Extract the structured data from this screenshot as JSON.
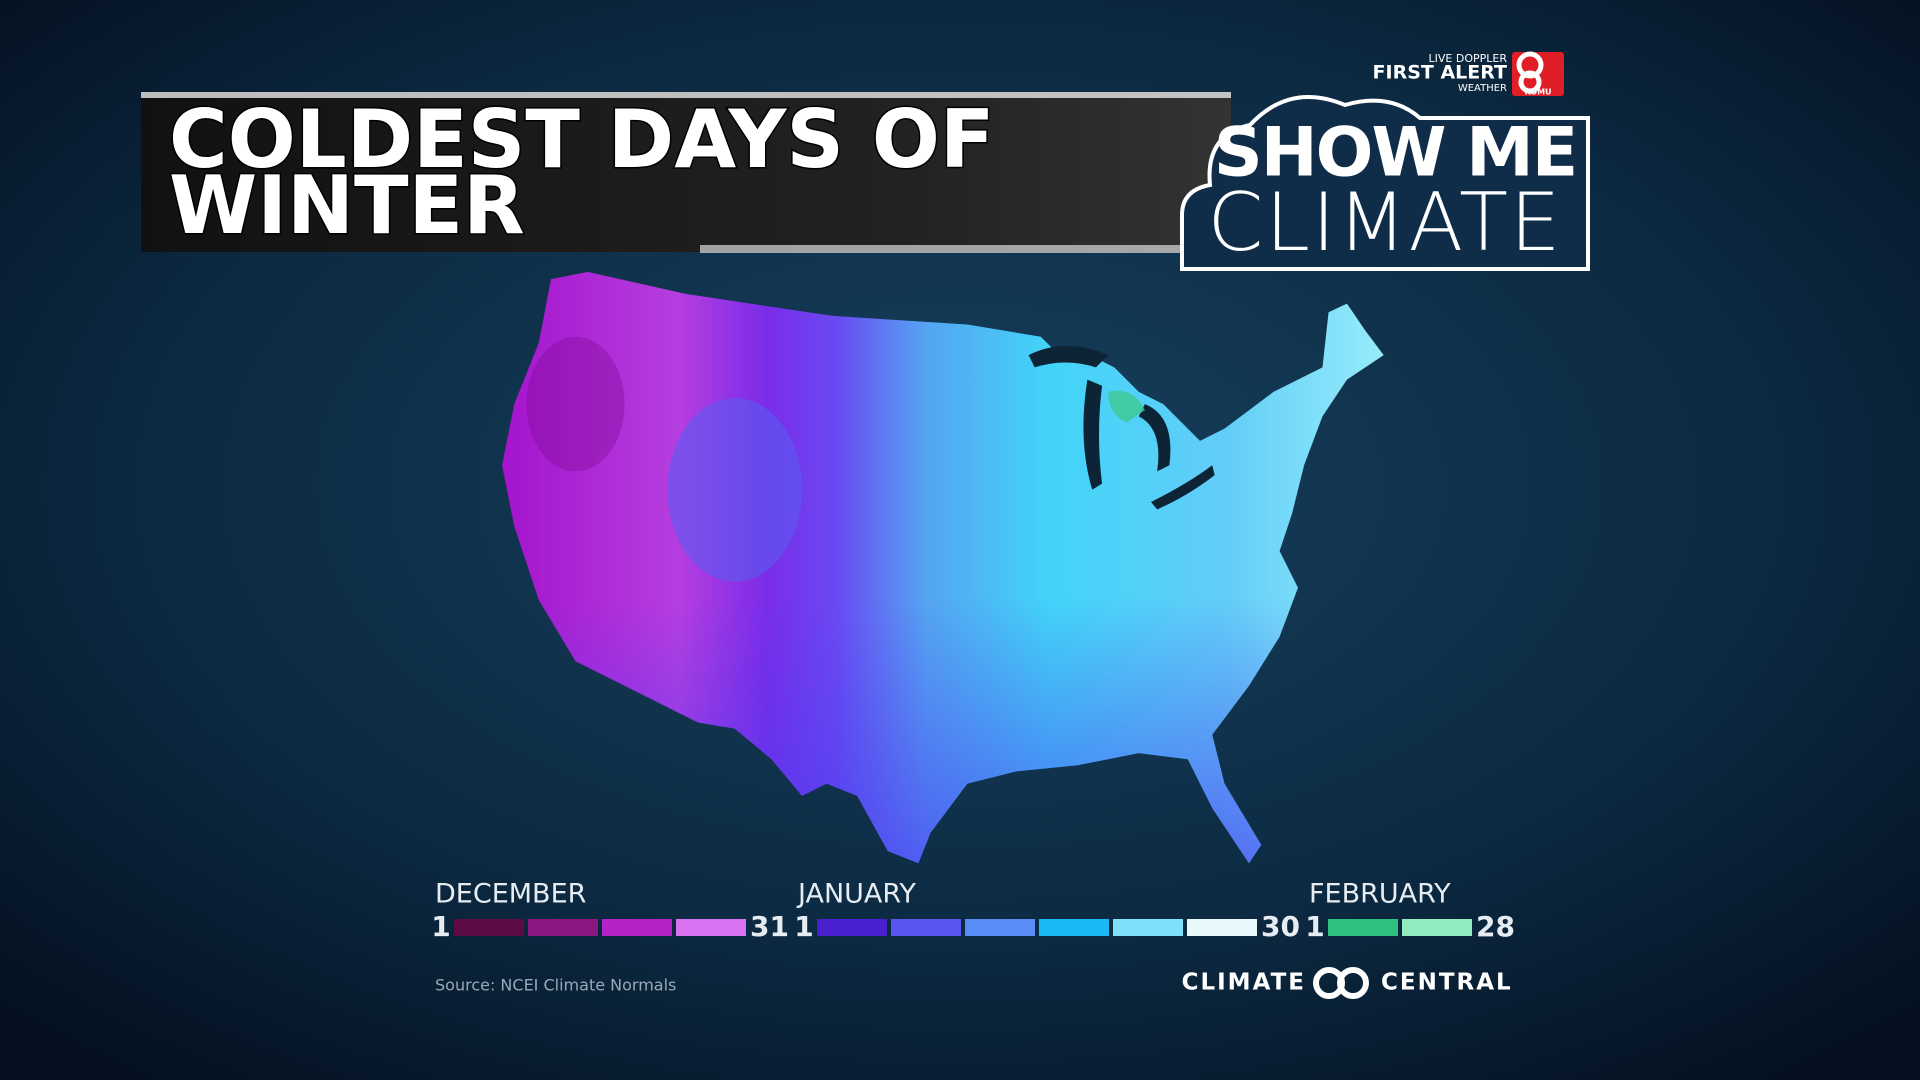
{
  "header": {
    "title_lines": [
      "COLDEST DAYS OF",
      "WINTER"
    ],
    "brand": {
      "top": "LIVE DOPPLER",
      "main": "FIRST ALERT",
      "sub": "WEATHER",
      "station": "KOMU"
    },
    "show": {
      "line1": "SHOW ME",
      "line2": "CLIMATE"
    }
  },
  "legend": {
    "groups": [
      {
        "name": "DECEMBER",
        "start": 1,
        "end": 31,
        "colors": [
          "#5c0b44",
          "#8a1880",
          "#b422c8",
          "#d872f0"
        ]
      },
      {
        "name": "JANUARY",
        "start": 1,
        "end": 30,
        "colors": [
          "#4a1fd0",
          "#5a55f0",
          "#5a8cf5",
          "#1ab8f5",
          "#80e0fb",
          "#e8f8fb"
        ]
      },
      {
        "name": "FEBRUARY",
        "start": 1,
        "end": 28,
        "colors": [
          "#2fc080",
          "#90ecc0"
        ]
      }
    ]
  },
  "footer": {
    "source": "Source: NCEI Climate Normals",
    "credit_left": "CLIMATE",
    "credit_right": "CENTRAL"
  }
}
